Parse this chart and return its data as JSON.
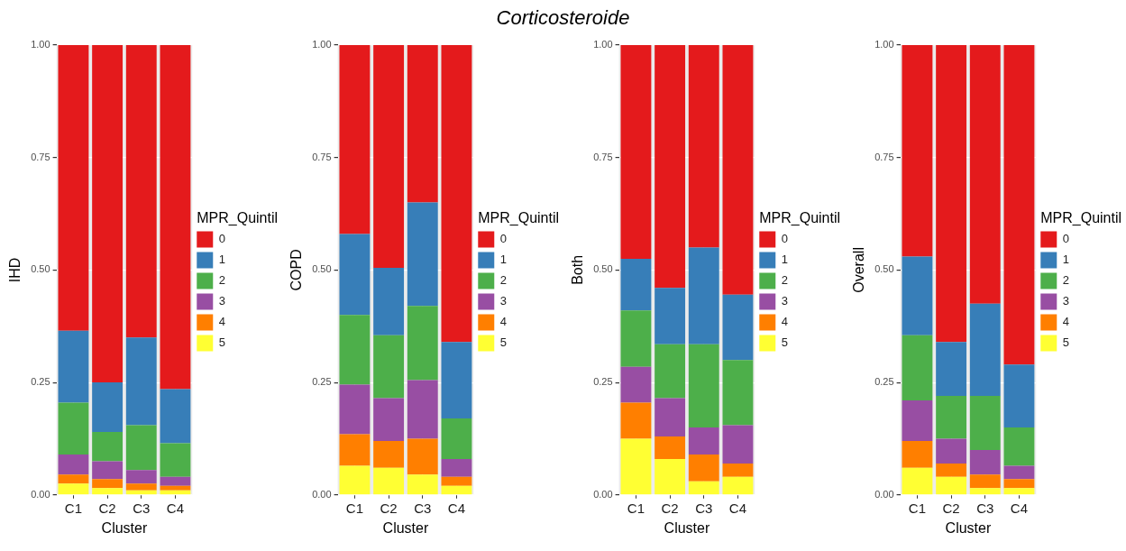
{
  "chart_data": [
    {
      "type": "other",
      "title": "Corticosteroide"
    },
    {
      "type": "bar",
      "stacked": true,
      "categories": [
        "C1",
        "C2",
        "C3",
        "C4"
      ],
      "xlabel": "Cluster",
      "ylabel": "IHD",
      "legend_title": "MPR_Quintil",
      "legend": "right",
      "grid": true,
      "ylim": [
        0,
        1
      ],
      "yticks": [
        {
          "value": 0,
          "label": "0.00"
        },
        {
          "value": 0.25,
          "label": "0.25"
        },
        {
          "value": 0.5,
          "label": "0.50"
        },
        {
          "value": 0.75,
          "label": "0.75"
        },
        {
          "value": 1,
          "label": "1.00"
        }
      ],
      "series": [
        {
          "name": "5",
          "color": "#ffff33",
          "values": [
            0.025,
            0.015,
            0.01,
            0.01
          ]
        },
        {
          "name": "4",
          "color": "#ff7f00",
          "values": [
            0.02,
            0.02,
            0.015,
            0.01
          ]
        },
        {
          "name": "3",
          "color": "#984ea3",
          "values": [
            0.045,
            0.04,
            0.03,
            0.02
          ]
        },
        {
          "name": "2",
          "color": "#4daf4a",
          "values": [
            0.115,
            0.065,
            0.1,
            0.075
          ]
        },
        {
          "name": "1",
          "color": "#377eb8",
          "values": [
            0.16,
            0.11,
            0.195,
            0.12
          ]
        },
        {
          "name": "0",
          "color": "#e41a1c",
          "values": [
            0.635,
            0.75,
            0.65,
            0.765
          ]
        }
      ]
    },
    {
      "type": "bar",
      "stacked": true,
      "categories": [
        "C1",
        "C2",
        "C3",
        "C4"
      ],
      "xlabel": "Cluster",
      "ylabel": "COPD",
      "legend_title": "MPR_Quintil",
      "legend": "right",
      "grid": true,
      "ylim": [
        0,
        1
      ],
      "yticks": [
        {
          "value": 0,
          "label": "0.00"
        },
        {
          "value": 0.25,
          "label": "0.25"
        },
        {
          "value": 0.5,
          "label": "0.50"
        },
        {
          "value": 0.75,
          "label": "0.75"
        },
        {
          "value": 1,
          "label": "1.00"
        }
      ],
      "series": [
        {
          "name": "5",
          "color": "#ffff33",
          "values": [
            0.065,
            0.06,
            0.045,
            0.02
          ]
        },
        {
          "name": "4",
          "color": "#ff7f00",
          "values": [
            0.07,
            0.06,
            0.08,
            0.02
          ]
        },
        {
          "name": "3",
          "color": "#984ea3",
          "values": [
            0.11,
            0.095,
            0.13,
            0.04
          ]
        },
        {
          "name": "2",
          "color": "#4daf4a",
          "values": [
            0.155,
            0.14,
            0.165,
            0.09
          ]
        },
        {
          "name": "1",
          "color": "#377eb8",
          "values": [
            0.18,
            0.15,
            0.23,
            0.17
          ]
        },
        {
          "name": "0",
          "color": "#e41a1c",
          "values": [
            0.42,
            0.495,
            0.35,
            0.66
          ]
        }
      ]
    },
    {
      "type": "bar",
      "stacked": true,
      "categories": [
        "C1",
        "C2",
        "C3",
        "C4"
      ],
      "xlabel": "Cluster",
      "ylabel": "Both",
      "legend_title": "MPR_Quintil",
      "legend": "right",
      "grid": true,
      "ylim": [
        0,
        1
      ],
      "yticks": [
        {
          "value": 0,
          "label": "0.00"
        },
        {
          "value": 0.25,
          "label": "0.25"
        },
        {
          "value": 0.5,
          "label": "0.50"
        },
        {
          "value": 0.75,
          "label": "0.75"
        },
        {
          "value": 1,
          "label": "1.00"
        }
      ],
      "series": [
        {
          "name": "5",
          "color": "#ffff33",
          "values": [
            0.125,
            0.08,
            0.03,
            0.04
          ]
        },
        {
          "name": "4",
          "color": "#ff7f00",
          "values": [
            0.08,
            0.05,
            0.06,
            0.03
          ]
        },
        {
          "name": "3",
          "color": "#984ea3",
          "values": [
            0.08,
            0.085,
            0.06,
            0.085
          ]
        },
        {
          "name": "2",
          "color": "#4daf4a",
          "values": [
            0.125,
            0.12,
            0.185,
            0.145
          ]
        },
        {
          "name": "1",
          "color": "#377eb8",
          "values": [
            0.115,
            0.125,
            0.215,
            0.145
          ]
        },
        {
          "name": "0",
          "color": "#e41a1c",
          "values": [
            0.475,
            0.54,
            0.45,
            0.555
          ]
        }
      ]
    },
    {
      "type": "bar",
      "stacked": true,
      "categories": [
        "C1",
        "C2",
        "C3",
        "C4"
      ],
      "xlabel": "Cluster",
      "ylabel": "Overall",
      "legend_title": "MPR_Quintil",
      "legend": "right",
      "grid": true,
      "ylim": [
        0,
        1
      ],
      "yticks": [
        {
          "value": 0,
          "label": "0.00"
        },
        {
          "value": 0.25,
          "label": "0.25"
        },
        {
          "value": 0.5,
          "label": "0.50"
        },
        {
          "value": 0.75,
          "label": "0.75"
        },
        {
          "value": 1,
          "label": "1.00"
        }
      ],
      "series": [
        {
          "name": "5",
          "color": "#ffff33",
          "values": [
            0.06,
            0.04,
            0.015,
            0.015
          ]
        },
        {
          "name": "4",
          "color": "#ff7f00",
          "values": [
            0.06,
            0.03,
            0.03,
            0.02
          ]
        },
        {
          "name": "3",
          "color": "#984ea3",
          "values": [
            0.09,
            0.055,
            0.055,
            0.03
          ]
        },
        {
          "name": "2",
          "color": "#4daf4a",
          "values": [
            0.145,
            0.095,
            0.12,
            0.085
          ]
        },
        {
          "name": "1",
          "color": "#377eb8",
          "values": [
            0.175,
            0.12,
            0.205,
            0.14
          ]
        },
        {
          "name": "0",
          "color": "#e41a1c",
          "values": [
            0.47,
            0.66,
            0.575,
            0.71
          ]
        }
      ]
    }
  ]
}
